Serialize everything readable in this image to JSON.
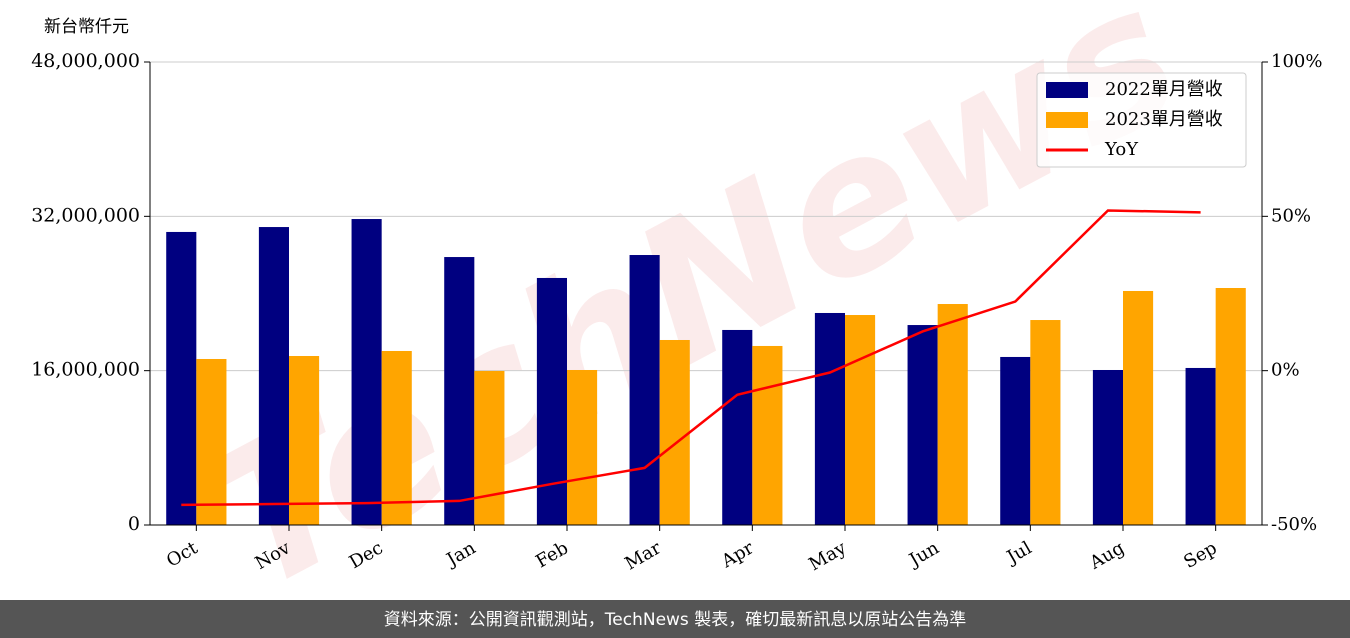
{
  "chart_data": {
    "type": "bar_line",
    "y_label": "新台幣仟元",
    "watermark": "TechNews",
    "source": "資料來源：公開資訊觀測站，TechNews 製表，確切最新訊息以原站公告為準",
    "categories": [
      "Oct",
      "Nov",
      "Dec",
      "Jan",
      "Feb",
      "Mar",
      "Apr",
      "May",
      "Jun",
      "Jul",
      "Aug",
      "Sep"
    ],
    "series": [
      {
        "name": "2022單月營收",
        "type": "bar",
        "color": "#000080",
        "values": [
          30380000,
          30890000,
          31720000,
          27780000,
          25610000,
          27990000,
          20220000,
          21980000,
          20730000,
          17420000,
          16070000,
          16280000
        ]
      },
      {
        "name": "2023單月營收",
        "type": "bar",
        "color": "#ffa500",
        "values": [
          17210000,
          17520000,
          18040000,
          15970000,
          16070000,
          19180000,
          18560000,
          21770000,
          22910000,
          21250000,
          24260000,
          24570000
        ]
      },
      {
        "name": "YoY",
        "type": "line",
        "axis": "y2",
        "color": "#ff0000",
        "values": [
          -43.5,
          -43.2,
          -42.9,
          -42.2,
          -36.7,
          -31.5,
          -7.8,
          -0.6,
          12.7,
          22.4,
          51.9,
          51.3
        ]
      }
    ],
    "ylim": [
      0,
      48000000
    ],
    "yticks": [
      0,
      {
        "value": 16000000,
        "label": "16,000,000"
      },
      {
        "value": 32000000,
        "label": "32,000,000"
      },
      {
        "value": 48000000,
        "label": "48,000,000"
      }
    ],
    "y2lim": [
      -50,
      100
    ],
    "y2ticks": [
      {
        "value": -50,
        "label": "-50%"
      },
      {
        "value": 0,
        "label": "0%"
      },
      {
        "value": 50,
        "label": "50%"
      },
      {
        "value": 100,
        "label": "100%"
      }
    ],
    "grid": true,
    "legend": "upper right"
  }
}
